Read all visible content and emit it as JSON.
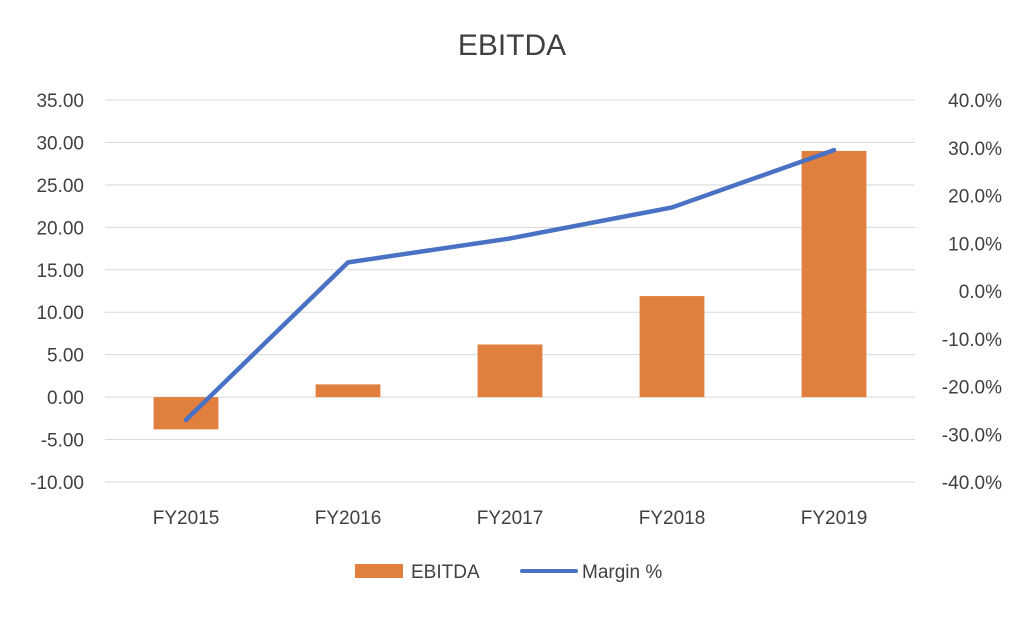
{
  "chart_data": {
    "type": "bar",
    "title": "EBITDA",
    "categories": [
      "FY2015",
      "FY2016",
      "FY2017",
      "FY2018",
      "FY2019"
    ],
    "series": [
      {
        "name": "EBITDA",
        "type": "bar",
        "axis": "left",
        "color": "#E07F3E",
        "values": [
          -3.8,
          1.5,
          6.2,
          11.9,
          29.0
        ]
      },
      {
        "name": "Margin %",
        "type": "line",
        "axis": "right",
        "color": "#4A72C4",
        "values": [
          -27.0,
          6.0,
          11.0,
          17.5,
          29.5
        ]
      }
    ],
    "y_left": {
      "min": -10,
      "max": 35,
      "step": 5,
      "tick_labels": [
        "-10.00",
        "-5.00",
        "0.00",
        "5.00",
        "10.00",
        "15.00",
        "20.00",
        "25.00",
        "30.00",
        "35.00"
      ]
    },
    "y_right": {
      "min": -40,
      "max": 40,
      "step": 10,
      "tick_labels": [
        "-40.0%",
        "-30.0%",
        "-20.0%",
        "-10.0%",
        "0.0%",
        "10.0%",
        "20.0%",
        "30.0%",
        "40.0%"
      ]
    },
    "grid": true,
    "legend": "bottom"
  }
}
